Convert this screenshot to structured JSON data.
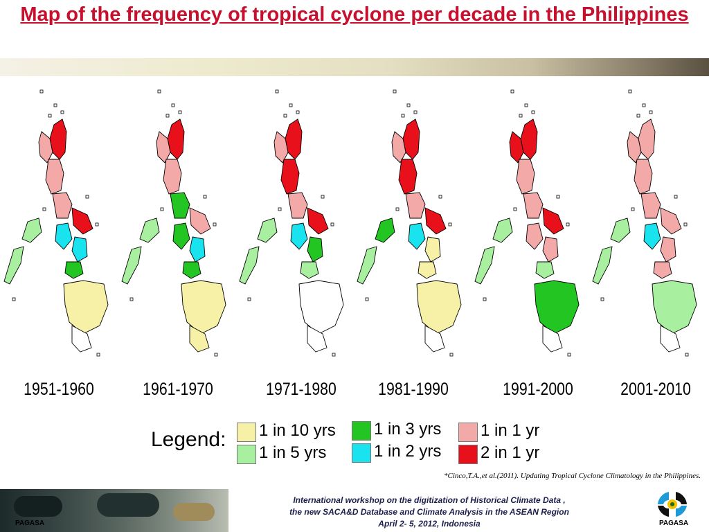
{
  "title": "Map of the frequency of tropical cyclone per decade in the Philippines",
  "periods": [
    "1951-1960",
    "1961-1970",
    "1971-1980",
    "1981-1990",
    "1991-2000",
    "2001-2010"
  ],
  "legend": {
    "heading": "Legend:",
    "items": [
      {
        "label": "1 in 10 yrs",
        "color": "#f6f1a6"
      },
      {
        "label": "1 in 5  yrs",
        "color": "#a8f0a0"
      },
      {
        "label": "1 in 3  yrs",
        "color": "#22c522"
      },
      {
        "label": "1 in 2  yrs",
        "color": "#19e3ee"
      },
      {
        "label": "1 in 1  yr",
        "color": "#f4a9a9"
      },
      {
        "label": "2 in 1  yr",
        "color": "#e8101a"
      }
    ]
  },
  "citation": "*Cinco,T.A.,et al.(2011). Updating Tropical Cyclone Climatology in the Philippines.",
  "footer": {
    "line1": "International workshop on the digitization of Historical Climate Data ,",
    "line2": "the new SACA&D Database and Climate Analysis  in the ASEAN Region",
    "line3": "April 2- 5, 2012, Indonesia",
    "org_left": "PAGASA",
    "org_right": "PAGASA"
  }
}
